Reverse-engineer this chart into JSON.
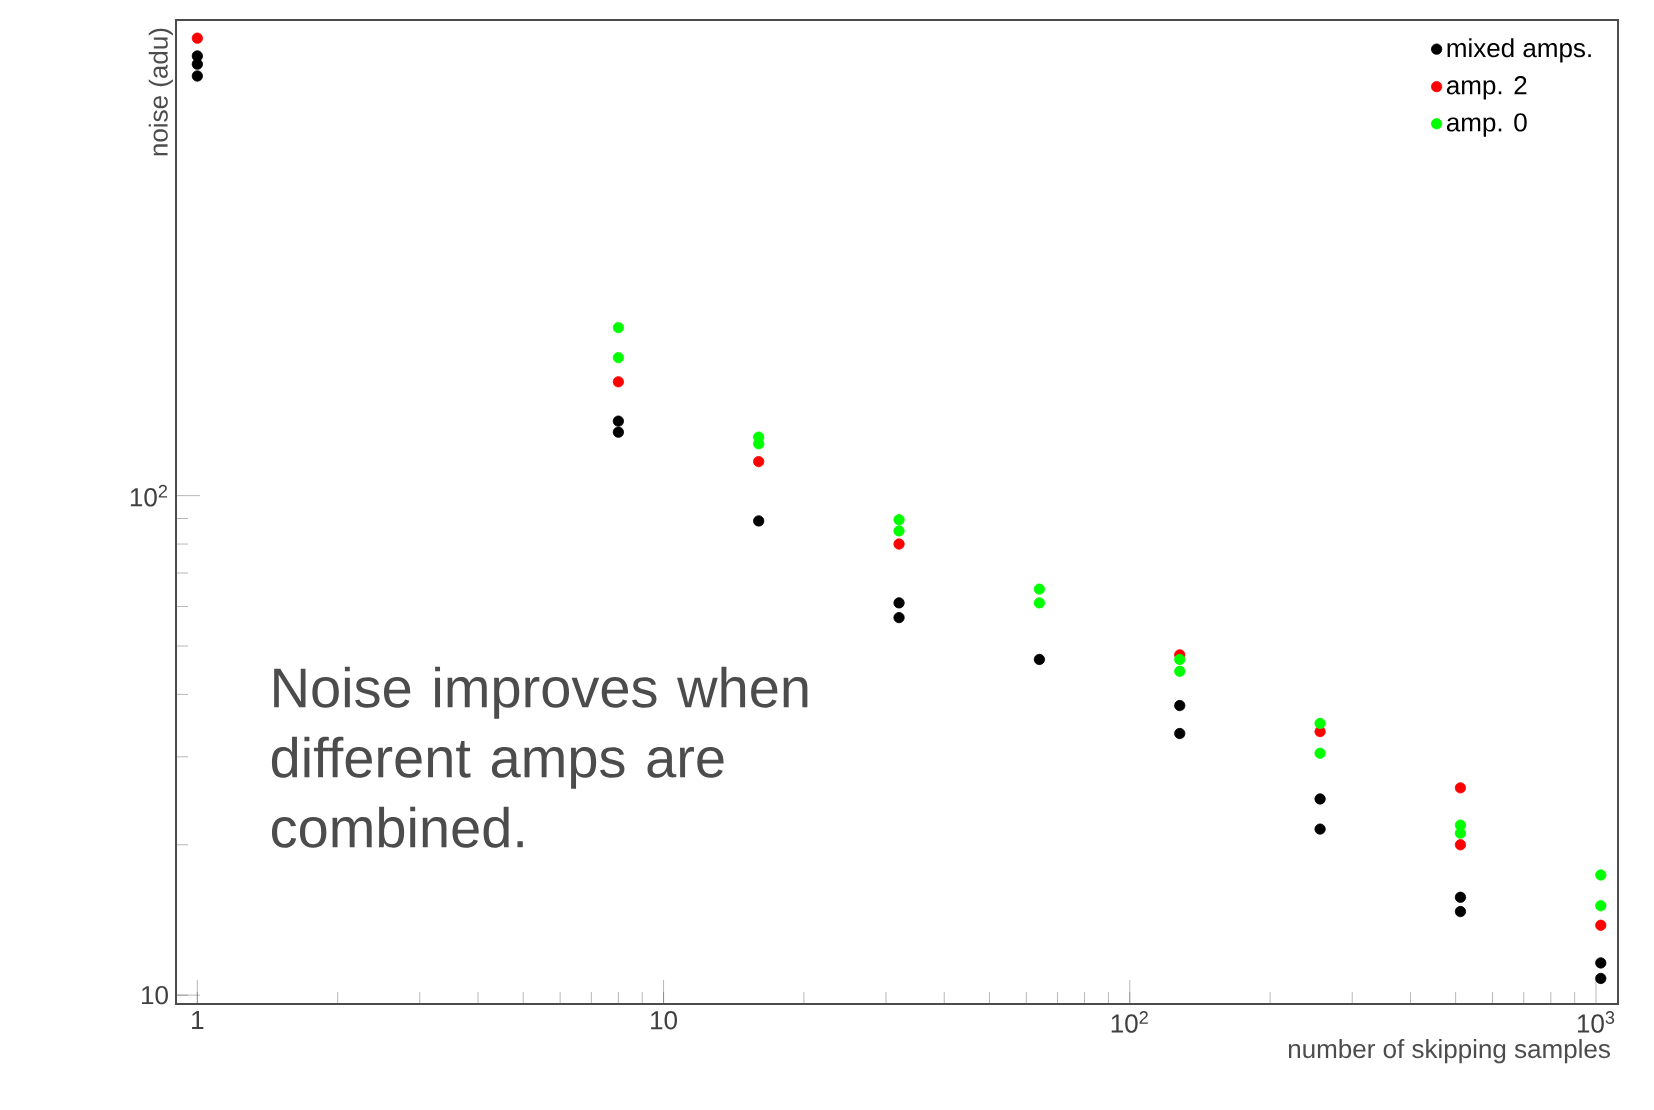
{
  "chart_data": {
    "type": "scatter",
    "xlabel": "number of skipping samples",
    "ylabel": "noise (adu)",
    "log": "xy",
    "xlim": [
      0.9,
      1115
    ],
    "ylim": [
      9.6,
      896
    ],
    "xticks": [
      1,
      10,
      {
        "value": 100,
        "label": "10$^{2}$"
      },
      {
        "value": 1000,
        "label": "10$^{3}$"
      }
    ],
    "yticks": [
      10,
      {
        "value": 100,
        "label": "10$^{2}$"
      }
    ],
    "legend": "top right",
    "annotations": [
      "Noise improves when different amps are combined."
    ],
    "series": [
      {
        "name": "mixed amps.",
        "color": "#000000",
        "x": [
          1,
          1,
          1,
          8,
          8,
          16,
          32,
          32,
          64,
          128,
          128,
          256,
          256,
          512,
          512,
          1024,
          1024
        ],
        "values": [
          759,
          731,
          692,
          141,
          134,
          89,
          61,
          57,
          47,
          38,
          33.4,
          24.7,
          21.5,
          15.7,
          14.7,
          11.6,
          10.8
        ]
      },
      {
        "name": "amp. 2",
        "color": "#ff0000",
        "x": [
          1,
          8,
          16,
          32,
          128,
          256,
          512,
          512,
          1024
        ],
        "values": [
          824,
          169,
          117,
          80,
          48,
          33.7,
          26,
          20,
          13.8
        ]
      },
      {
        "name": "amp. 0",
        "color": "#00ff00",
        "x": [
          8,
          8,
          16,
          16,
          32,
          32,
          64,
          64,
          128,
          128,
          256,
          256,
          512,
          512,
          1024,
          1024
        ],
        "values": [
          217,
          189,
          131,
          127,
          89.5,
          85,
          65,
          61,
          47,
          44.5,
          35,
          30.5,
          21.9,
          21.1,
          17.4,
          15.1
        ]
      }
    ]
  }
}
